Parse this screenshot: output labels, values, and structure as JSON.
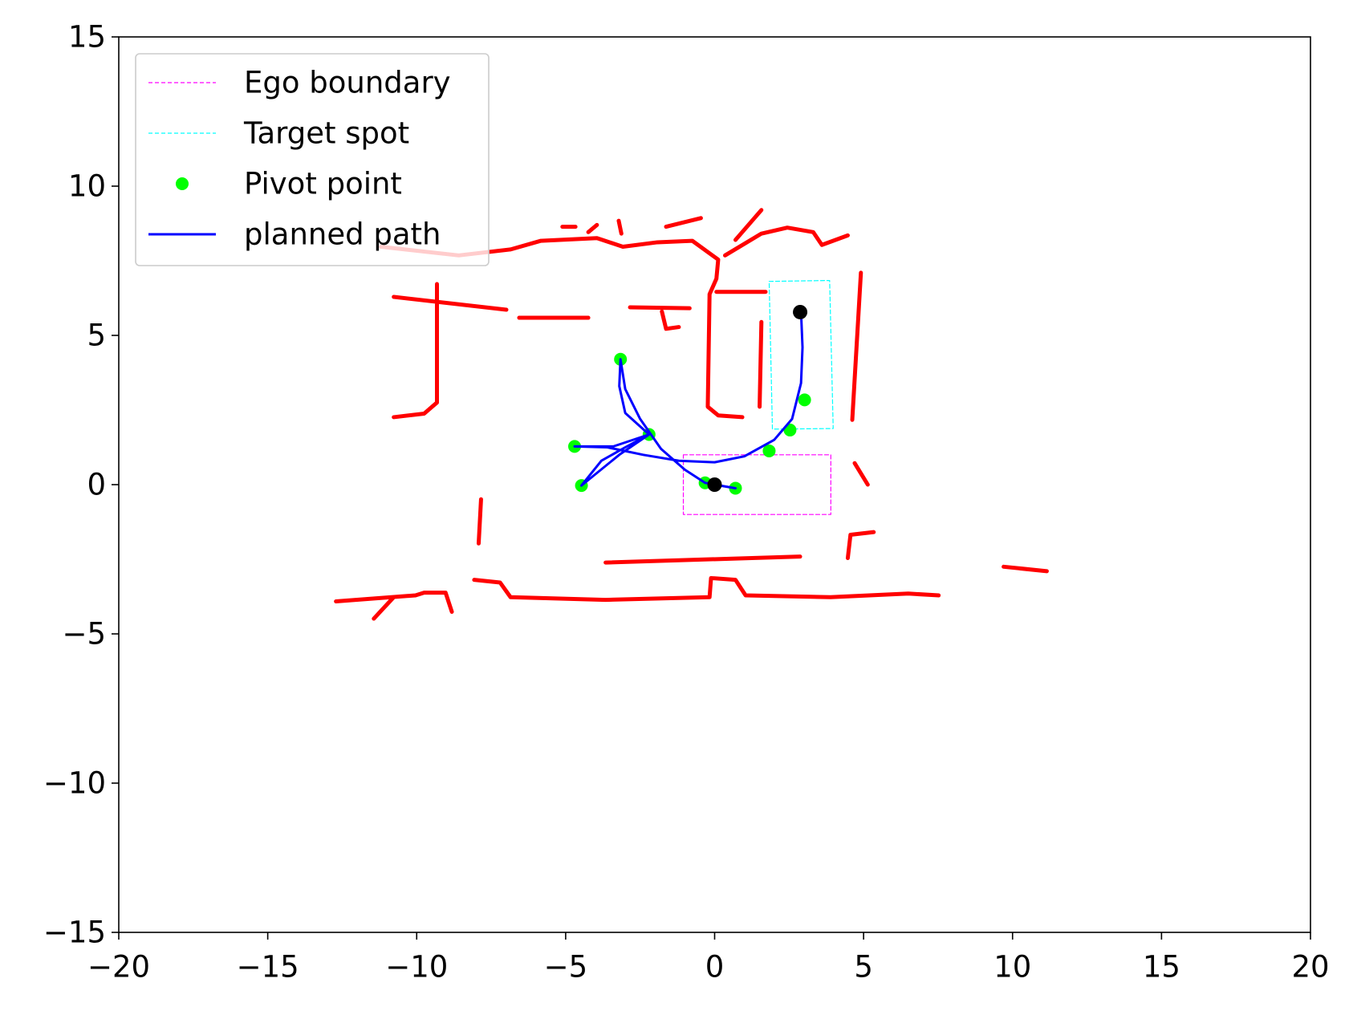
{
  "chart_data": {
    "type": "line",
    "xlim": [
      -20,
      20
    ],
    "ylim": [
      -15,
      15
    ],
    "xticks": [
      {
        "value": -20,
        "label": "−20"
      },
      {
        "value": -15,
        "label": "−15"
      },
      {
        "value": -10,
        "label": "−10"
      },
      {
        "value": -5,
        "label": "−5"
      },
      0,
      5,
      10,
      15,
      20
    ],
    "yticks": [
      {
        "value": -15,
        "label": "−15"
      },
      {
        "value": -10,
        "label": "−10"
      },
      {
        "value": -5,
        "label": "−5"
      },
      0,
      5,
      10,
      15
    ],
    "grid": false,
    "legend": "upper left",
    "series": [
      {
        "color": "#ff0000",
        "kind": "line",
        "linestyle": "solid",
        "width": 5,
        "x": [
          -11.2,
          -8.59,
          -6.85,
          -5.83,
          -3.95,
          -3.08,
          -1.92,
          -0.75,
          0.12,
          0.06,
          -0.17,
          -0.23,
          0.12,
          0.93,
          null,
          0.35,
          1.57,
          2.44,
          3.31,
          3.6,
          4.47,
          null,
          0.06,
          1.71,
          null,
          -10.77,
          -6.99,
          null,
          -9.32,
          -9.32,
          -9.75,
          -10.77,
          null,
          -6.56,
          -4.24,
          null,
          -2.84,
          -0.84,
          null,
          -1.77,
          -1.63,
          -1.2,
          null,
          4.91,
          4.62,
          null,
          1.57,
          1.51,
          null,
          4.7,
          5.14,
          null,
          4.47,
          4.56,
          5.34,
          null,
          -7.84,
          -7.92,
          null,
          -8.07,
          -7.2,
          -6.85,
          -3.66,
          -0.17,
          -0.12,
          0.7,
          1.04,
          3.89,
          6.5,
          7.52,
          null,
          -12.71,
          -10.04,
          -9.75,
          -9.03,
          -8.82,
          null,
          -11.44,
          -10.77,
          null,
          -3.66,
          2.87,
          null,
          9.7,
          11.15,
          null,
          -5.11,
          -4.67,
          null,
          -4.24,
          -3.95,
          null,
          -3.22,
          -3.13,
          null,
          -1.63,
          -0.46,
          null,
          0.7,
          1.57
        ],
        "y": [
          7.97,
          7.68,
          7.88,
          8.17,
          8.26,
          7.97,
          8.12,
          8.17,
          7.54,
          6.9,
          6.38,
          2.61,
          2.32,
          2.26,
          null,
          7.68,
          8.41,
          8.61,
          8.46,
          8.03,
          8.35,
          null,
          6.46,
          6.46,
          null,
          6.29,
          5.86,
          null,
          6.72,
          2.75,
          2.38,
          2.26,
          null,
          5.59,
          5.59,
          null,
          5.94,
          5.91,
          null,
          5.8,
          5.22,
          5.28,
          null,
          7.1,
          2.17,
          null,
          5.45,
          2.61,
          null,
          0.72,
          0,
          null,
          -2.46,
          -1.68,
          -1.59,
          null,
          -0.49,
          -1.97,
          null,
          -3.19,
          -3.28,
          -3.77,
          -3.86,
          -3.77,
          -3.13,
          -3.19,
          -3.71,
          -3.77,
          -3.65,
          -3.71,
          null,
          -3.91,
          -3.71,
          -3.62,
          -3.62,
          -4.26,
          null,
          -4.49,
          -3.77,
          null,
          -2.61,
          -2.41,
          null,
          -2.75,
          -2.9,
          null,
          8.64,
          8.64,
          null,
          8.46,
          8.7,
          null,
          8.84,
          8.41,
          null,
          8.64,
          8.93,
          null,
          8.2,
          9.2
        ]
      },
      {
        "name": "Ego boundary",
        "color": "#ff00ff",
        "kind": "line",
        "linestyle": "dashed",
        "width": 1.2,
        "x": [
          -1.05,
          3.9,
          3.9,
          -1.05,
          -1.05
        ],
        "y": [
          1.0,
          1.0,
          -1.0,
          -1.0,
          1.0
        ]
      },
      {
        "name": "Target spot",
        "color": "#00ffff",
        "kind": "line",
        "linestyle": "dashed",
        "width": 1.2,
        "x": [
          1.83,
          3.86,
          3.98,
          1.94,
          1.83
        ],
        "y": [
          6.81,
          6.84,
          1.88,
          1.86,
          6.81
        ]
      },
      {
        "name": "Pivot point",
        "color": "#00ff00",
        "kind": "scatter",
        "x": [
          -3.16,
          -2.2,
          -4.7,
          -4.47,
          -0.32,
          0.7,
          1.83,
          2.53,
          3.02
        ],
        "y": [
          4.2,
          1.68,
          1.28,
          -0.03,
          0.06,
          -0.12,
          1.13,
          1.83,
          2.84
        ]
      },
      {
        "name": "planned path",
        "color": "#0000ff",
        "kind": "line",
        "linestyle": "solid",
        "width": 3,
        "x": [
          2.9,
          2.95,
          2.9,
          2.6,
          2.0,
          1.0,
          0,
          -1.2,
          -2.4,
          -3.6,
          -4.7,
          -3.4,
          -2.2,
          -3.2,
          -4.47,
          -3.8,
          -3.0,
          -2.2,
          -3.0,
          -3.2,
          -3.16,
          -3.0,
          -2.5,
          -1.8,
          -1.0,
          -0.32,
          0.7,
          0
        ],
        "y": [
          5.8,
          4.6,
          3.4,
          2.2,
          1.5,
          0.95,
          0.75,
          0.8,
          1.0,
          1.25,
          1.28,
          1.28,
          1.68,
          1.0,
          -0.03,
          0.8,
          1.25,
          1.68,
          2.4,
          3.3,
          4.2,
          3.2,
          2.2,
          1.2,
          0.5,
          0.06,
          -0.12,
          0
        ]
      },
      {
        "color": "#000000",
        "kind": "scatter",
        "x": [
          0,
          2.87
        ],
        "y": [
          0,
          5.78
        ]
      }
    ]
  }
}
